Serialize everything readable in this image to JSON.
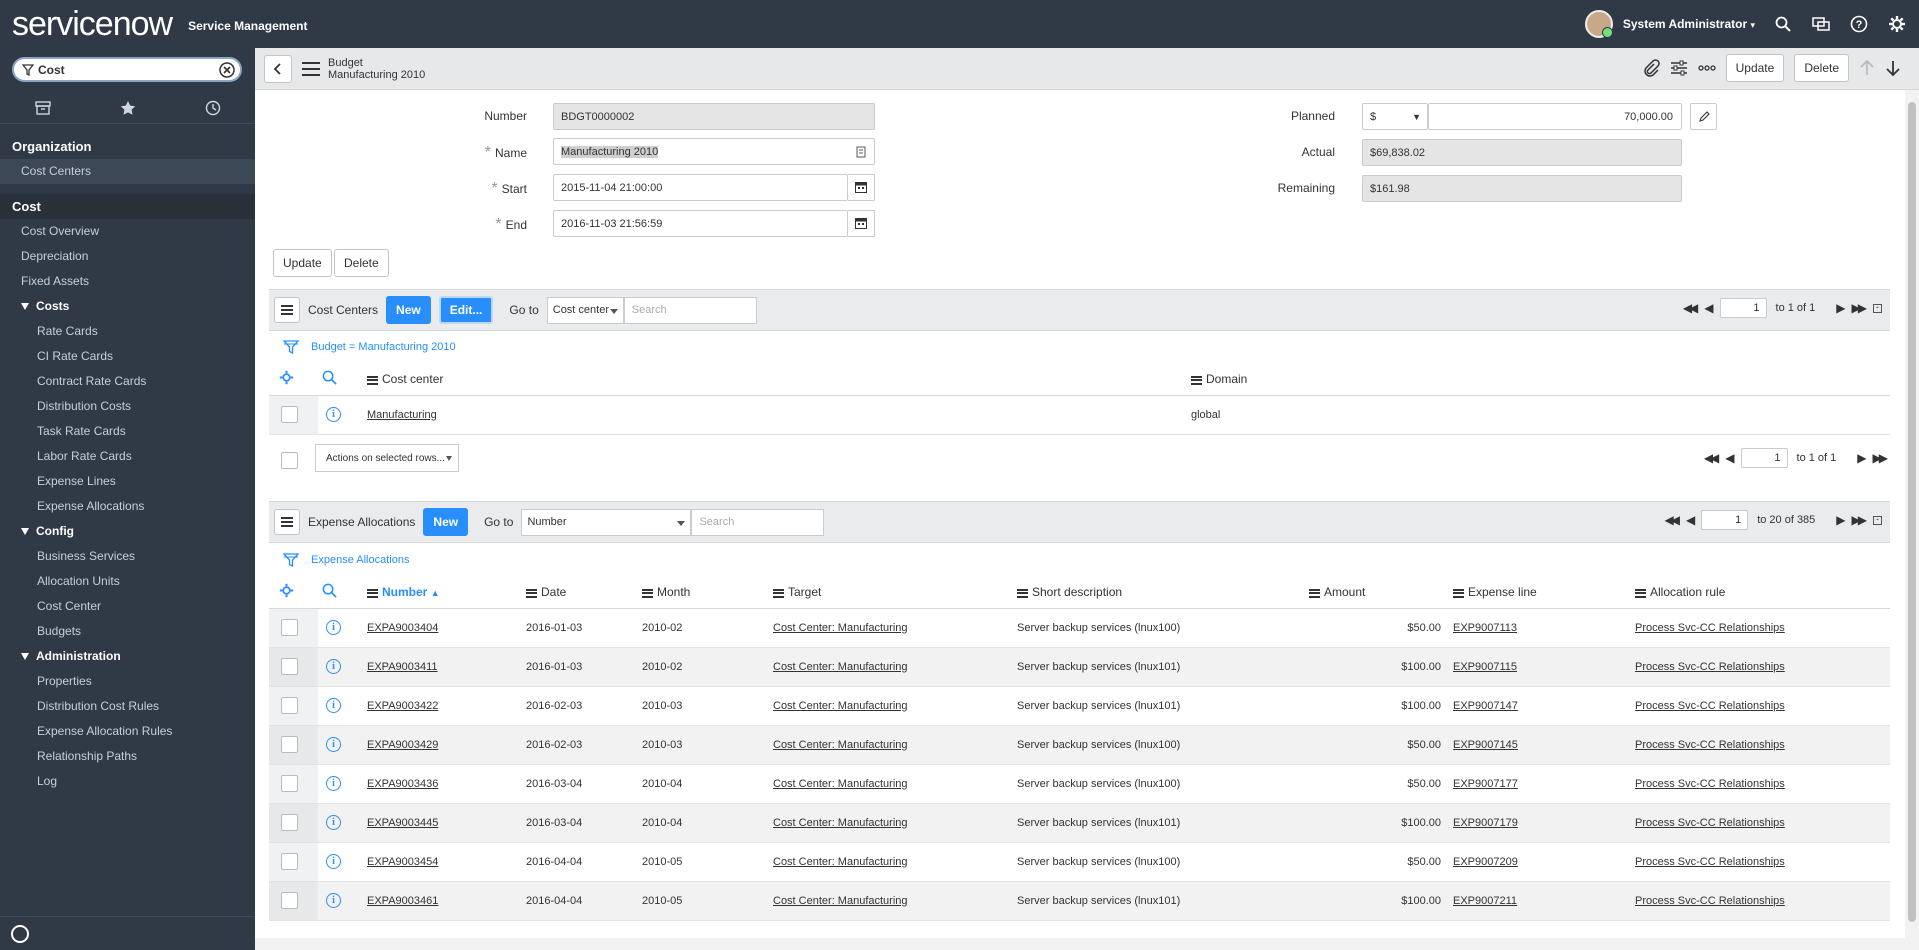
{
  "header": {
    "logo_service": "service",
    "logo_now": "now",
    "app_name": "Service Management",
    "user_name": "System Administrator"
  },
  "sidebar": {
    "filter_value": "Cost",
    "org_header": "Organization",
    "org_items": [
      {
        "label": "Cost Centers"
      }
    ],
    "cost_header": "Cost",
    "cost_items": [
      {
        "label": "Cost Overview"
      },
      {
        "label": "Depreciation"
      },
      {
        "label": "Fixed Assets"
      }
    ],
    "groups": [
      {
        "label": "Costs",
        "items": [
          "Rate Cards",
          "CI Rate Cards",
          "Contract Rate Cards",
          "Distribution Costs",
          "Task Rate Cards",
          "Labor Rate Cards",
          "Expense Lines",
          "Expense Allocations"
        ]
      },
      {
        "label": "Config",
        "items": [
          "Business Services",
          "Allocation Units",
          "Cost Center",
          "Budgets"
        ]
      },
      {
        "label": "Administration",
        "items": [
          "Properties",
          "Distribution Cost Rules",
          "Expense Allocation Rules",
          "Relationship Paths",
          "Log"
        ]
      }
    ]
  },
  "form": {
    "type": "Budget",
    "record_name": "Manufacturing 2010",
    "update_label": "Update",
    "delete_label": "Delete",
    "fields": {
      "number_label": "Number",
      "number_value": "BDGT0000002",
      "name_label": "Name",
      "name_value": "Manufacturing 2010",
      "start_label": "Start",
      "start_value": "2015-11-04 21:00:00",
      "end_label": "End",
      "end_value": "2016-11-03 21:56:59",
      "planned_label": "Planned",
      "planned_currency": "$",
      "planned_value": "70,000.00",
      "actual_label": "Actual",
      "actual_value": "$69,838.02",
      "remaining_label": "Remaining",
      "remaining_value": "$161.98"
    }
  },
  "cost_centers_list": {
    "title": "Cost Centers",
    "new_label": "New",
    "edit_label": "Edit...",
    "goto_label": "Go to",
    "goto_field": "Cost center",
    "search_placeholder": "Search",
    "page": "1",
    "page_total": "to 1 of 1",
    "filter": "Budget = Manufacturing 2010",
    "columns": [
      "Cost center",
      "Domain"
    ],
    "rows": [
      {
        "cost_center": "Manufacturing",
        "domain": "global"
      }
    ],
    "actions_label": "Actions on selected rows...",
    "bottom_page": "1",
    "bottom_total": "to 1 of 1"
  },
  "expense_list": {
    "title": "Expense Allocations",
    "new_label": "New",
    "goto_label": "Go to",
    "goto_field": "Number",
    "search_placeholder": "Search",
    "page": "1",
    "page_total": "to 20 of 385",
    "filter": "Expense Allocations",
    "columns": [
      "Number",
      "Date",
      "Month",
      "Target",
      "Short description",
      "Amount",
      "Expense line",
      "Allocation rule"
    ],
    "rows": [
      {
        "number": "EXPA9003404",
        "date": "2016-01-03",
        "month": "2010-02",
        "target": "Cost Center: Manufacturing",
        "desc": "Server backup services (lnux100)",
        "amount": "$50.00",
        "line": "EXP9007113",
        "rule": "Process Svc-CC Relationships"
      },
      {
        "number": "EXPA9003411",
        "date": "2016-01-03",
        "month": "2010-02",
        "target": "Cost Center: Manufacturing",
        "desc": "Server backup services (lnux101)",
        "amount": "$100.00",
        "line": "EXP9007115",
        "rule": "Process Svc-CC Relationships"
      },
      {
        "number": "EXPA9003422",
        "date": "2016-02-03",
        "month": "2010-03",
        "target": "Cost Center: Manufacturing",
        "desc": "Server backup services (lnux101)",
        "amount": "$100.00",
        "line": "EXP9007147",
        "rule": "Process Svc-CC Relationships"
      },
      {
        "number": "EXPA9003429",
        "date": "2016-02-03",
        "month": "2010-03",
        "target": "Cost Center: Manufacturing",
        "desc": "Server backup services (lnux100)",
        "amount": "$50.00",
        "line": "EXP9007145",
        "rule": "Process Svc-CC Relationships"
      },
      {
        "number": "EXPA9003436",
        "date": "2016-03-04",
        "month": "2010-04",
        "target": "Cost Center: Manufacturing",
        "desc": "Server backup services (lnux100)",
        "amount": "$50.00",
        "line": "EXP9007177",
        "rule": "Process Svc-CC Relationships"
      },
      {
        "number": "EXPA9003445",
        "date": "2016-03-04",
        "month": "2010-04",
        "target": "Cost Center: Manufacturing",
        "desc": "Server backup services (lnux101)",
        "amount": "$100.00",
        "line": "EXP9007179",
        "rule": "Process Svc-CC Relationships"
      },
      {
        "number": "EXPA9003454",
        "date": "2016-04-04",
        "month": "2010-05",
        "target": "Cost Center: Manufacturing",
        "desc": "Server backup services (lnux100)",
        "amount": "$50.00",
        "line": "EXP9007209",
        "rule": "Process Svc-CC Relationships"
      },
      {
        "number": "EXPA9003461",
        "date": "2016-04-04",
        "month": "2010-05",
        "target": "Cost Center: Manufacturing",
        "desc": "Server backup services (lnux101)",
        "amount": "$100.00",
        "line": "EXP9007211",
        "rule": "Process Svc-CC Relationships"
      }
    ]
  }
}
